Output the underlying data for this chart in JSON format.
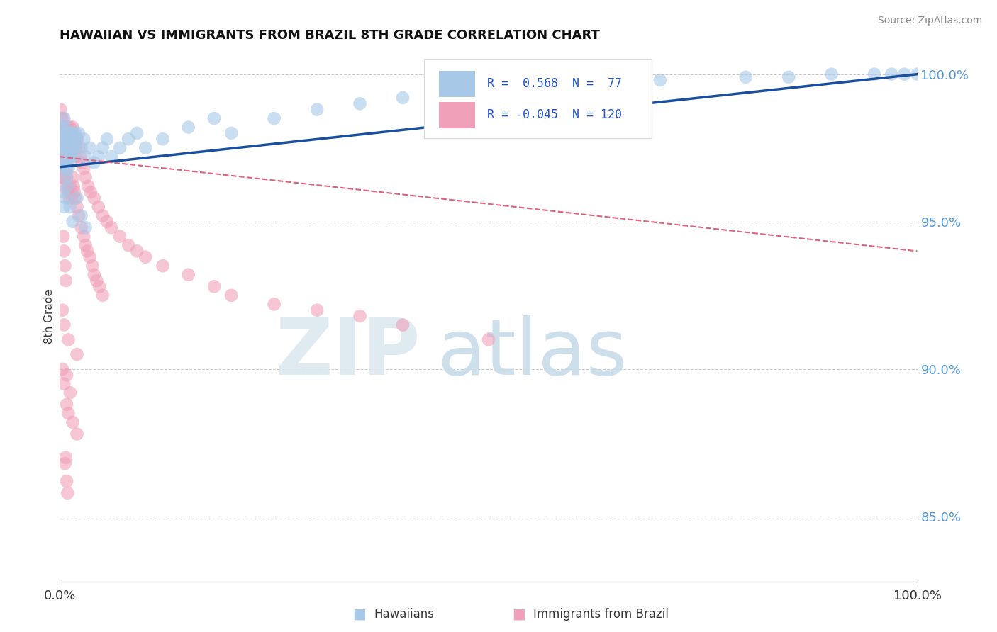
{
  "title": "HAWAIIAN VS IMMIGRANTS FROM BRAZIL 8TH GRADE CORRELATION CHART",
  "source": "Source: ZipAtlas.com",
  "ylabel": "8th Grade",
  "xlim": [
    0.0,
    1.0
  ],
  "ylim": [
    0.828,
    1.008
  ],
  "yticks": [
    0.85,
    0.9,
    0.95,
    1.0
  ],
  "ytick_labels": [
    "85.0%",
    "90.0%",
    "95.0%",
    "100.0%"
  ],
  "xticks": [
    0.0,
    1.0
  ],
  "xtick_labels": [
    "0.0%",
    "100.0%"
  ],
  "legend_labels": [
    "Hawaiians",
    "Immigrants from Brazil"
  ],
  "R_hawaiian": 0.568,
  "N_hawaiian": 77,
  "R_brazil": -0.045,
  "N_brazil": 120,
  "blue_color": "#a8c8e8",
  "pink_color": "#f0a0b8",
  "blue_line_color": "#1a4fa0",
  "pink_line_color": "#e06080",
  "background_color": "#ffffff",
  "watermark_zip_color": "#dce8f0",
  "watermark_atlas_color": "#c8dce8",
  "hawaiian_x": [
    0.002,
    0.003,
    0.003,
    0.004,
    0.004,
    0.005,
    0.005,
    0.005,
    0.006,
    0.006,
    0.006,
    0.007,
    0.007,
    0.007,
    0.008,
    0.008,
    0.008,
    0.009,
    0.009,
    0.01,
    0.01,
    0.01,
    0.011,
    0.011,
    0.012,
    0.012,
    0.013,
    0.013,
    0.014,
    0.015,
    0.015,
    0.016,
    0.017,
    0.018,
    0.019,
    0.02,
    0.022,
    0.025,
    0.028,
    0.03,
    0.035,
    0.04,
    0.045,
    0.05,
    0.055,
    0.06,
    0.07,
    0.08,
    0.09,
    0.1,
    0.12,
    0.15,
    0.18,
    0.2,
    0.25,
    0.3,
    0.35,
    0.4,
    0.5,
    0.6,
    0.7,
    0.8,
    0.85,
    0.9,
    0.95,
    0.97,
    0.985,
    1.0,
    0.003,
    0.005,
    0.007,
    0.009,
    0.012,
    0.015,
    0.02,
    0.025,
    0.03
  ],
  "hawaiian_y": [
    0.982,
    0.978,
    0.975,
    0.98,
    0.972,
    0.985,
    0.978,
    0.97,
    0.982,
    0.975,
    0.968,
    0.98,
    0.975,
    0.968,
    0.978,
    0.972,
    0.965,
    0.975,
    0.97,
    0.98,
    0.975,
    0.968,
    0.978,
    0.972,
    0.98,
    0.975,
    0.978,
    0.972,
    0.975,
    0.98,
    0.972,
    0.975,
    0.978,
    0.98,
    0.975,
    0.978,
    0.98,
    0.975,
    0.978,
    0.972,
    0.975,
    0.97,
    0.972,
    0.975,
    0.978,
    0.972,
    0.975,
    0.978,
    0.98,
    0.975,
    0.978,
    0.982,
    0.985,
    0.98,
    0.985,
    0.988,
    0.99,
    0.992,
    0.995,
    0.997,
    0.998,
    0.999,
    0.999,
    1.0,
    1.0,
    1.0,
    1.0,
    1.0,
    0.96,
    0.955,
    0.958,
    0.962,
    0.955,
    0.95,
    0.958,
    0.952,
    0.948
  ],
  "brazil_x": [
    0.001,
    0.001,
    0.002,
    0.002,
    0.002,
    0.003,
    0.003,
    0.003,
    0.003,
    0.004,
    0.004,
    0.004,
    0.004,
    0.005,
    0.005,
    0.005,
    0.005,
    0.006,
    0.006,
    0.006,
    0.007,
    0.007,
    0.007,
    0.008,
    0.008,
    0.008,
    0.009,
    0.009,
    0.01,
    0.01,
    0.01,
    0.011,
    0.011,
    0.012,
    0.012,
    0.013,
    0.013,
    0.014,
    0.015,
    0.015,
    0.016,
    0.017,
    0.018,
    0.019,
    0.02,
    0.022,
    0.024,
    0.026,
    0.028,
    0.03,
    0.033,
    0.036,
    0.04,
    0.045,
    0.05,
    0.055,
    0.06,
    0.07,
    0.08,
    0.09,
    0.1,
    0.12,
    0.15,
    0.18,
    0.2,
    0.25,
    0.3,
    0.35,
    0.4,
    0.5,
    0.001,
    0.002,
    0.003,
    0.004,
    0.005,
    0.006,
    0.007,
    0.008,
    0.009,
    0.01,
    0.011,
    0.012,
    0.013,
    0.014,
    0.015,
    0.016,
    0.017,
    0.018,
    0.02,
    0.022,
    0.025,
    0.028,
    0.03,
    0.032,
    0.035,
    0.038,
    0.04,
    0.043,
    0.046,
    0.05,
    0.003,
    0.005,
    0.008,
    0.01,
    0.015,
    0.02,
    0.007,
    0.006,
    0.008,
    0.009,
    0.004,
    0.005,
    0.006,
    0.007,
    0.003,
    0.005,
    0.01,
    0.02,
    0.008,
    0.012
  ],
  "brazil_y": [
    0.988,
    0.982,
    0.985,
    0.978,
    0.975,
    0.982,
    0.978,
    0.972,
    0.968,
    0.985,
    0.98,
    0.975,
    0.968,
    0.982,
    0.978,
    0.972,
    0.965,
    0.98,
    0.975,
    0.968,
    0.982,
    0.978,
    0.972,
    0.98,
    0.975,
    0.968,
    0.978,
    0.972,
    0.982,
    0.978,
    0.972,
    0.98,
    0.975,
    0.982,
    0.978,
    0.98,
    0.975,
    0.978,
    0.982,
    0.978,
    0.98,
    0.978,
    0.975,
    0.972,
    0.978,
    0.975,
    0.972,
    0.97,
    0.968,
    0.965,
    0.962,
    0.96,
    0.958,
    0.955,
    0.952,
    0.95,
    0.948,
    0.945,
    0.942,
    0.94,
    0.938,
    0.935,
    0.932,
    0.928,
    0.925,
    0.922,
    0.92,
    0.918,
    0.915,
    0.91,
    0.972,
    0.968,
    0.965,
    0.962,
    0.975,
    0.97,
    0.968,
    0.965,
    0.962,
    0.96,
    0.958,
    0.962,
    0.96,
    0.958,
    0.965,
    0.962,
    0.96,
    0.958,
    0.955,
    0.952,
    0.948,
    0.945,
    0.942,
    0.94,
    0.938,
    0.935,
    0.932,
    0.93,
    0.928,
    0.925,
    0.9,
    0.895,
    0.888,
    0.885,
    0.882,
    0.878,
    0.87,
    0.868,
    0.862,
    0.858,
    0.945,
    0.94,
    0.935,
    0.93,
    0.92,
    0.915,
    0.91,
    0.905,
    0.898,
    0.892
  ]
}
